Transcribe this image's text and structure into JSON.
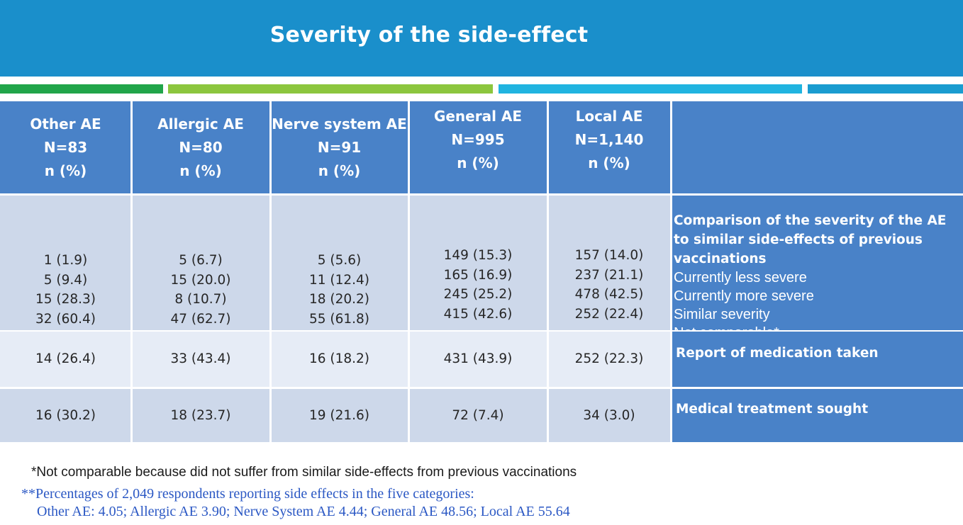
{
  "title": "Severity of the side-effect",
  "columns": [
    {
      "name": "Other AE",
      "n": "N=83",
      "unit": "n (%)"
    },
    {
      "name": "Allergic AE",
      "n": "N=80",
      "unit": "n (%)"
    },
    {
      "name": "Nerve system AE",
      "n": "N=91",
      "unit": "n (%)"
    },
    {
      "name": "General AE",
      "n": "N=995",
      "unit": "n (%)"
    },
    {
      "name": "Local AE",
      "n": "N=1,140",
      "unit": "n (%)"
    }
  ],
  "rows": [
    {
      "labels": [
        "Comparison of the severity of the AE to similar side-effects of previous vaccinations",
        "Currently less severe",
        "Currently more severe",
        "Similar severity",
        "Not comparable*"
      ],
      "values": [
        [
          "1 (1.9)",
          "5 (9.4)",
          "15 (28.3)",
          "32 (60.4)"
        ],
        [
          "5 (6.7)",
          "15 (20.0)",
          "8 (10.7)",
          "47 (62.7)"
        ],
        [
          "5 (5.6)",
          "11 (12.4)",
          "18 (20.2)",
          "55 (61.8)"
        ],
        [
          "149 (15.3)",
          "165 (16.9)",
          "245 (25.2)",
          "415 (42.6)"
        ],
        [
          "157 (14.0)",
          "237 (21.1)",
          "478 (42.5)",
          "252 (22.4)"
        ]
      ]
    },
    {
      "label": "Report of medication taken",
      "values": [
        "14 (26.4)",
        "33 (43.4)",
        "16 (18.2)",
        "431 (43.9)",
        "252 (22.3)"
      ]
    },
    {
      "label": "Medical treatment sought",
      "values": [
        "16 (30.2)",
        "18 (23.7)",
        "19 (21.6)",
        "72 (7.4)",
        "34 (3.0)"
      ]
    }
  ],
  "footnotes": {
    "note1": "*Not comparable because did not suffer from similar side-effects from previous vaccinations",
    "note2": "**Percentages of 2,049 respondents reporting side effects in the five categories:",
    "note3": "Other AE: 4.05; Allergic AE 3.90; Nerve System AE 4.44; General AE 48.56; Local AE 55.64"
  },
  "colors": {
    "banner": "#1a8fcb",
    "header": "#4982c8",
    "row_dark": "#cdd8ea",
    "row_light": "#e6ecf6"
  }
}
